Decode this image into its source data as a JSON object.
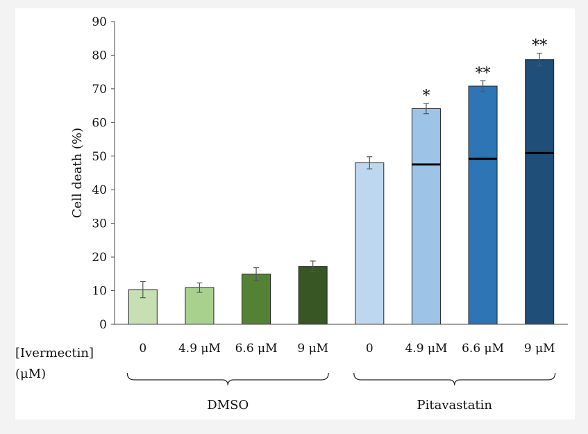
{
  "chart_data": {
    "type": "bar",
    "ylabel": "Cell death (%)",
    "ylim": [
      0,
      90
    ],
    "yticks": [
      0,
      10,
      20,
      30,
      40,
      50,
      60,
      70,
      80,
      90
    ],
    "row_label_line1": "[Ivermectin]",
    "row_label_line2": "(μM)",
    "categories": [
      "0",
      "4.9 μM",
      "6.6 μM",
      "9 μM",
      "0",
      "4.9 μM",
      "6.6 μM",
      "9 μM"
    ],
    "groups": [
      {
        "name": "DMSO",
        "indices": [
          0,
          1,
          2,
          3
        ]
      },
      {
        "name": "Pitavastatin",
        "indices": [
          4,
          5,
          6,
          7
        ]
      }
    ],
    "values": [
      10.3,
      10.9,
      14.9,
      17.2,
      48.0,
      64.1,
      70.8,
      78.7
    ],
    "errors": [
      2.4,
      1.4,
      1.9,
      1.6,
      1.8,
      1.5,
      1.6,
      1.9
    ],
    "expected_additive": [
      null,
      null,
      null,
      null,
      null,
      47.5,
      49.2,
      50.9
    ],
    "significance": [
      "",
      "",
      "",
      "",
      "",
      "*",
      "**",
      "**"
    ],
    "colors": [
      "#c6e0b4",
      "#a9d18e",
      "#548235",
      "#375623",
      "#bdd7ee",
      "#9dc3e6",
      "#2e75b6",
      "#1f4e79"
    ]
  }
}
